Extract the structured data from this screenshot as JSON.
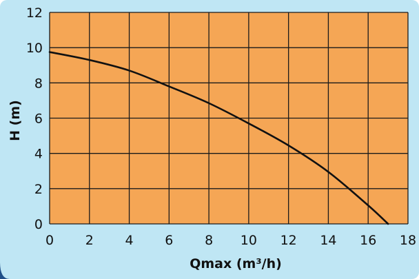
{
  "colors": {
    "background": "#bfe6f4",
    "plot_fill": "#f5a655",
    "grid": "#1a1a1a",
    "curve": "#111111",
    "frame_accent": "#1f4f88"
  },
  "chart_data": {
    "type": "line",
    "title": "",
    "xlabel": "Qmax (m³/h)",
    "ylabel": "H (m)",
    "xlim": [
      0,
      18
    ],
    "ylim": [
      0,
      12
    ],
    "x_ticks": [
      0,
      2,
      4,
      6,
      8,
      10,
      12,
      14,
      16,
      18
    ],
    "y_ticks": [
      0,
      2,
      4,
      6,
      8,
      10,
      12
    ],
    "grid": true,
    "series": [
      {
        "values": [
          {
            "x": 0,
            "y": 9.75
          },
          {
            "x": 2,
            "y": 9.3
          },
          {
            "x": 4,
            "y": 8.7
          },
          {
            "x": 6,
            "y": 7.8
          },
          {
            "x": 8,
            "y": 6.85
          },
          {
            "x": 10,
            "y": 5.7
          },
          {
            "x": 12,
            "y": 4.45
          },
          {
            "x": 14,
            "y": 2.95
          },
          {
            "x": 16,
            "y": 1.05
          },
          {
            "x": 17,
            "y": 0
          }
        ]
      }
    ]
  }
}
